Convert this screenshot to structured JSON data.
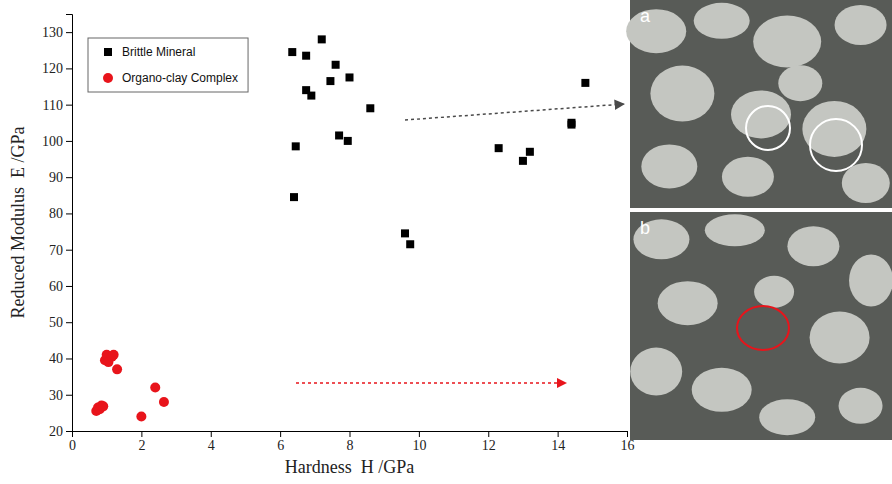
{
  "chart_data": {
    "type": "scatter",
    "xlabel": "Hardness  H /GPa",
    "ylabel": "Reduced Modulus  E /GPa",
    "xlim": [
      0,
      16
    ],
    "ylim": [
      20,
      135
    ],
    "xticks": [
      0,
      2,
      4,
      6,
      8,
      10,
      12,
      14,
      16
    ],
    "yticks": [
      20,
      30,
      40,
      50,
      60,
      70,
      80,
      90,
      100,
      110,
      120,
      130
    ],
    "legend": "upper left",
    "series": [
      {
        "name": "Brittle Mineral",
        "color": "#000000",
        "marker": "square",
        "x": [
          6.35,
          6.45,
          6.4,
          6.75,
          6.75,
          6.9,
          7.2,
          7.45,
          7.6,
          7.7,
          8.0,
          7.95,
          8.6,
          9.6,
          9.75,
          12.3,
          13.0,
          13.2,
          14.4,
          14.4,
          14.8
        ],
        "values": [
          124.5,
          98.5,
          84.5,
          123.5,
          114,
          112.5,
          128,
          116.5,
          121,
          101.5,
          117.5,
          100,
          109,
          74.5,
          71.5,
          98,
          94.5,
          97,
          105,
          104.5,
          116
        ]
      },
      {
        "name": "Organo-clay Complex",
        "color": "#e8141b",
        "marker": "circle",
        "x": [
          0.7,
          0.75,
          0.8,
          0.85,
          0.9,
          0.95,
          1.0,
          1.05,
          1.15,
          1.2,
          1.3,
          2.0,
          2.4,
          2.65
        ],
        "values": [
          25.5,
          26.5,
          26,
          27,
          26.8,
          39.5,
          41,
          39,
          40.5,
          41,
          37,
          24,
          32,
          28
        ]
      }
    ]
  },
  "panels": [
    {
      "label": "a"
    },
    {
      "label": "b"
    }
  ]
}
